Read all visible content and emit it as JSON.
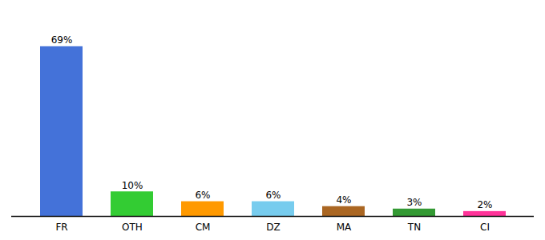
{
  "chart_data": {
    "type": "bar",
    "categories": [
      "FR",
      "OTH",
      "CM",
      "DZ",
      "MA",
      "TN",
      "CI"
    ],
    "values": [
      69,
      10,
      6,
      6,
      4,
      3,
      2
    ],
    "value_labels": [
      "69%",
      "10%",
      "6%",
      "6%",
      "4%",
      "3%",
      "2%"
    ],
    "colors": [
      "#4472d9",
      "#33cc33",
      "#ff9900",
      "#77ccee",
      "#aa6622",
      "#339933",
      "#ff3399"
    ],
    "ylim": [
      0,
      80
    ],
    "grid": false,
    "data_labels": true,
    "tick_labels": "x"
  }
}
